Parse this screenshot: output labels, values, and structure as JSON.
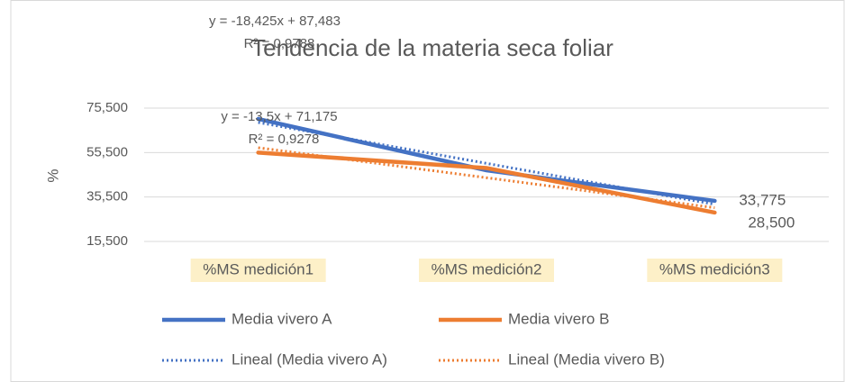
{
  "chart_data": {
    "type": "line",
    "title": "Tendencia de la materia seca foliar",
    "y_label": "%",
    "categories": [
      "%MS medición1",
      "%MS medición2",
      "%MS medición3"
    ],
    "series": [
      {
        "name": "Media vivero A",
        "color": "#4472c4",
        "values": [
          70.625,
          47.5,
          33.775
        ],
        "value_labels": [
          null,
          null,
          "33,775"
        ]
      },
      {
        "name": "Media vivero B",
        "color": "#ed7d31",
        "values": [
          55.5,
          48.525,
          28.5
        ],
        "value_labels": [
          null,
          null,
          "28,500"
        ]
      }
    ],
    "trendlines": [
      {
        "name": "Lineal (Media vivero A)",
        "color": "#4472c4",
        "slope": -18.425,
        "intercept": 87.483,
        "equation": "y = -18,425x + 87,483",
        "r_squared": "R² = 0,9788"
      },
      {
        "name": "Lineal (Media vivero B)",
        "color": "#ed7d31",
        "slope": -13.5,
        "intercept": 71.175,
        "equation": "y = -13,5x + 71,175",
        "r_squared": "R² = 0,9278"
      }
    ],
    "ylim": [
      15.5,
      75.5
    ],
    "yticks": [
      {
        "value": 15.5,
        "label": "15,500"
      },
      {
        "value": 35.5,
        "label": "35,500"
      },
      {
        "value": 55.5,
        "label": "55,500"
      },
      {
        "value": 75.5,
        "label": "75,500"
      }
    ],
    "grid": true,
    "legend": "bottom"
  }
}
